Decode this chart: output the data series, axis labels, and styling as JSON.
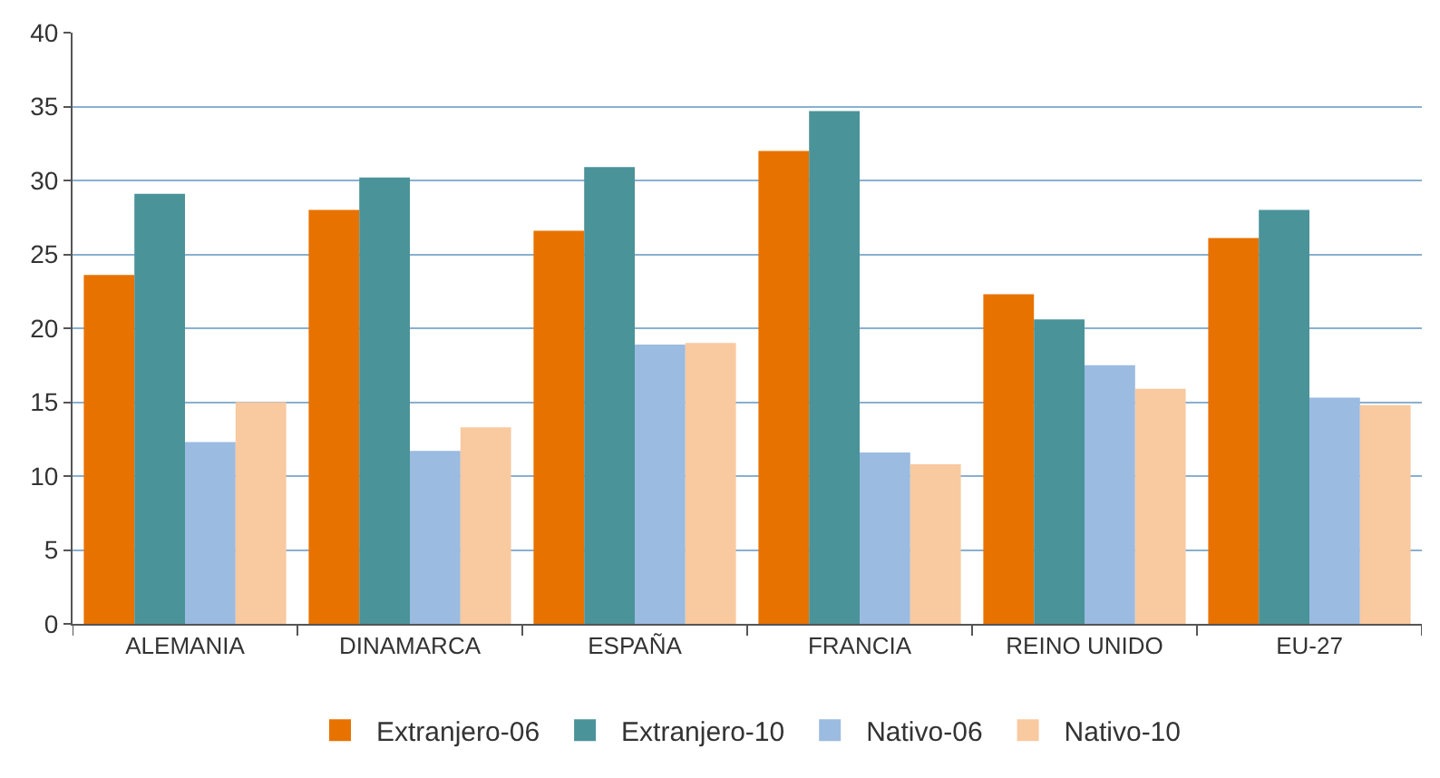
{
  "chart_data": {
    "type": "bar",
    "categories": [
      "ALEMANIA",
      "DINAMARCA",
      "ESPAÑA",
      "FRANCIA",
      "REINO UNIDO",
      "EU-27"
    ],
    "series": [
      {
        "name": "Extranjero-06",
        "color": "#e87200",
        "values": [
          23.6,
          28.0,
          26.6,
          32.0,
          22.3,
          26.1
        ]
      },
      {
        "name": "Extranjero-10",
        "color": "#4a9399",
        "values": [
          29.1,
          30.2,
          30.9,
          34.7,
          20.6,
          28.0
        ]
      },
      {
        "name": "Nativo-06",
        "color": "#9bbbe0",
        "values": [
          12.3,
          11.7,
          18.9,
          11.6,
          17.5,
          15.3
        ]
      },
      {
        "name": "Nativo-10",
        "color": "#f9c9a0",
        "values": [
          15.0,
          13.3,
          19.0,
          10.8,
          15.9,
          14.8
        ]
      }
    ],
    "ylim": [
      0,
      40
    ],
    "yticks": [
      0,
      5,
      10,
      15,
      20,
      25,
      30,
      35,
      40
    ],
    "grid": "y",
    "legend": "bottom"
  }
}
